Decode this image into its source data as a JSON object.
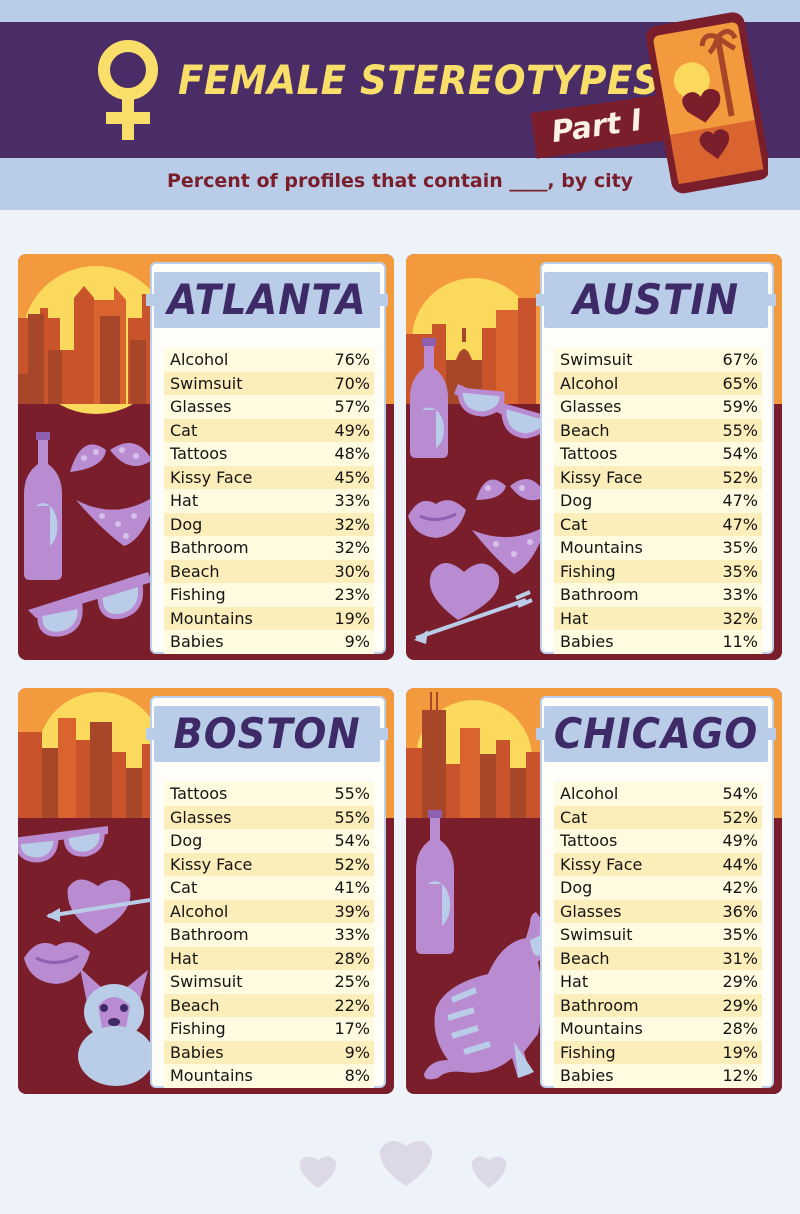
{
  "header": {
    "title": "FEMALE STEREOTYPES",
    "part": "Part I",
    "subtitle": "Percent of profiles that contain ____, by city"
  },
  "colors": {
    "header_band": "#4a2d66",
    "title": "#f9de6a",
    "accent": "#7a1e2c",
    "sky": "#f39a3e",
    "sun": "#fbd95c",
    "light_blue": "#b9cde9",
    "lavender": "#b98bd0"
  },
  "icons": [
    "female-symbol-icon",
    "phone-icon",
    "bottle-icon",
    "bikini-icon",
    "sunglasses-icon",
    "lips-icon",
    "heart-arrow-icon",
    "dog-icon",
    "cat-icon",
    "heart-icon"
  ],
  "chart_data": [
    {
      "type": "table",
      "title": "ATLANTA",
      "categories": [
        "Alcohol",
        "Swimsuit",
        "Glasses",
        "Cat",
        "Tattoos",
        "Kissy Face",
        "Hat",
        "Dog",
        "Bathroom",
        "Beach",
        "Fishing",
        "Mountains",
        "Babies"
      ],
      "values": [
        76,
        70,
        57,
        49,
        48,
        45,
        33,
        32,
        32,
        30,
        23,
        19,
        9
      ],
      "labels": [
        "76%",
        "70%",
        "57%",
        "49%",
        "48%",
        "45%",
        "33%",
        "32%",
        "32%",
        "30%",
        "23%",
        "19%",
        "9%"
      ]
    },
    {
      "type": "table",
      "title": "AUSTIN",
      "categories": [
        "Swimsuit",
        "Alcohol",
        "Glasses",
        "Beach",
        "Tattoos",
        "Kissy Face",
        "Dog",
        "Cat",
        "Mountains",
        "Fishing",
        "Bathroom",
        "Hat",
        "Babies"
      ],
      "values": [
        67,
        65,
        59,
        55,
        54,
        52,
        47,
        47,
        35,
        35,
        33,
        32,
        11
      ],
      "labels": [
        "67%",
        "65%",
        "59%",
        "55%",
        "54%",
        "52%",
        "47%",
        "47%",
        "35%",
        "35%",
        "33%",
        "32%",
        "11%"
      ]
    },
    {
      "type": "table",
      "title": "BOSTON",
      "categories": [
        "Tattoos",
        "Glasses",
        "Dog",
        "Kissy Face",
        "Cat",
        "Alcohol",
        "Bathroom",
        "Hat",
        "Swimsuit",
        "Beach",
        "Fishing",
        "Babies",
        "Mountains"
      ],
      "values": [
        55,
        55,
        54,
        52,
        41,
        39,
        33,
        28,
        25,
        22,
        17,
        9,
        8
      ],
      "labels": [
        "55%",
        "55%",
        "54%",
        "52%",
        "41%",
        "39%",
        "33%",
        "28%",
        "25%",
        "22%",
        "17%",
        "9%",
        "8%"
      ]
    },
    {
      "type": "table",
      "title": "CHICAGO",
      "categories": [
        "Alcohol",
        "Cat",
        "Tattoos",
        "Kissy Face",
        "Dog",
        "Glasses",
        "Swimsuit",
        "Beach",
        "Hat",
        "Bathroom",
        "Mountains",
        "Fishing",
        "Babies"
      ],
      "values": [
        54,
        52,
        49,
        44,
        42,
        36,
        35,
        31,
        29,
        29,
        28,
        19,
        12
      ],
      "labels": [
        "54%",
        "52%",
        "49%",
        "44%",
        "42%",
        "36%",
        "35%",
        "31%",
        "29%",
        "29%",
        "28%",
        "19%",
        "12%"
      ]
    }
  ]
}
